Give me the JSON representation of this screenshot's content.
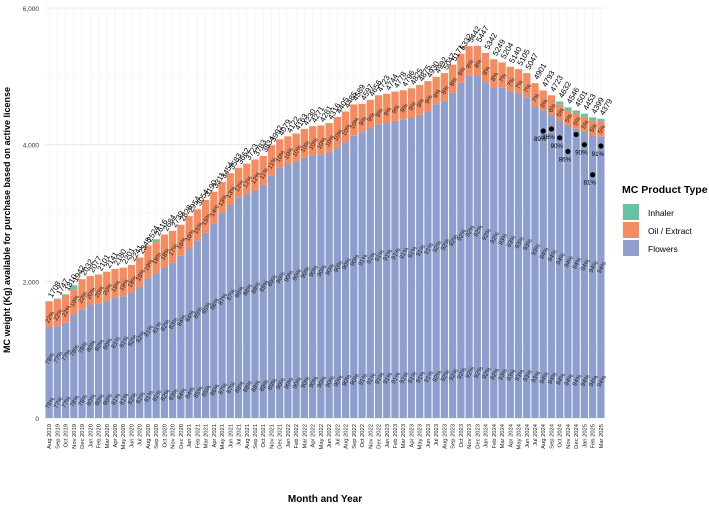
{
  "chart_data": {
    "type": "bar",
    "stacked": true,
    "title": "",
    "xlabel": "Month and Year",
    "ylabel": "MC weight (Kg) available for purchase based on active license",
    "ylim": [
      0,
      6000
    ],
    "yticks": [
      0,
      2000,
      4000,
      6000
    ],
    "ytick_labels": [
      "0",
      "2,000",
      "4,000",
      "6,000"
    ],
    "categories": [
      "Aug 2019",
      "Sep 2019",
      "Oct 2019",
      "Nov 2019",
      "Dec 2019",
      "Jan 2020",
      "Feb 2020",
      "Mar 2020",
      "Apr 2020",
      "May 2020",
      "Jun 2020",
      "Jul 2020",
      "Aug 2020",
      "Sep 2020",
      "Oct 2020",
      "Nov 2020",
      "Dec 2020",
      "Jan 2021",
      "Feb 2021",
      "Mar 2021",
      "Apr 2021",
      "May 2021",
      "Jun 2021",
      "Jul 2021",
      "Aug 2021",
      "Sep 2021",
      "Oct 2021",
      "Nov 2021",
      "Dec 2021",
      "Jan 2022",
      "Feb 2022",
      "Mar 2022",
      "Apr 2022",
      "May 2022",
      "Jun 2022",
      "Jul 2022",
      "Aug 2022",
      "Sep 2022",
      "Oct 2022",
      "Nov 2022",
      "Dec 2022",
      "Jan 2023",
      "Feb 2023",
      "Mar 2023",
      "Apr 2023",
      "May 2023",
      "Jun 2023",
      "Jul 2023",
      "Aug 2023",
      "Sep 2023",
      "Oct 2023",
      "Nov 2023",
      "Dec 2023",
      "Jan 2024",
      "Feb 2024",
      "Mar 2024",
      "Apr 2024",
      "May 2024",
      "Jun 2024",
      "Jul 2024",
      "Aug 2024",
      "Sep 2024",
      "Oct 2024",
      "Nov 2024",
      "Dec 2024",
      "Jan 2025",
      "Feb 2025",
      "Mar 2025"
    ],
    "totals": [
      1708,
      1747,
      1810,
      1942,
      2032,
      2077,
      2101,
      2141,
      2180,
      2201,
      2241,
      2348,
      2524,
      2616,
      2684,
      2739,
      2828,
      2954,
      3054,
      3190,
      3311,
      3454,
      3583,
      3662,
      3723,
      3783,
      3834,
      3992,
      4079,
      4122,
      4163,
      4230,
      4271,
      4281,
      4316,
      4405,
      4485,
      4589,
      4597,
      4656,
      4723,
      4744,
      4778,
      4796,
      4825,
      4875,
      4930,
      4992,
      5047,
      5171,
      5332,
      5442,
      5447,
      5342,
      5249,
      5204,
      5140,
      5105,
      5047,
      4901,
      4793,
      4723,
      4632,
      4546,
      4501,
      4453,
      4399,
      4379
    ],
    "flower_pct": [
      "78%",
      "77%",
      "77%",
      "78%",
      "78%",
      "80%",
      "80%",
      "80%",
      "81%",
      "81%",
      "82%",
      "82%",
      "81%",
      "81%",
      "82%",
      "83%",
      "84%",
      "84%",
      "85%",
      "85%",
      "86%",
      "87%",
      "87%",
      "88%",
      "88%",
      "88%",
      "89%",
      "89%",
      "90%",
      "90%",
      "90%",
      "90%",
      "90%",
      "90%",
      "90%",
      "90%",
      "90%",
      "90%",
      "91%",
      "91%",
      "91%",
      "91%",
      "91%",
      "91%",
      "91%",
      "91%",
      "91%",
      "92%",
      "92%",
      "92%",
      "92%",
      "92%",
      "92%",
      "92%",
      "92%",
      "93%",
      "93%",
      "93%",
      "93%",
      "93%",
      "94%",
      "94%",
      "94%",
      "94%",
      "94%",
      "94%",
      "94%",
      "94%"
    ],
    "oil_pct": [
      "22%",
      "22%",
      "22%",
      "19%",
      "22%",
      "20%",
      "20%",
      "20%",
      "19%",
      "19%",
      "18%",
      "18%",
      "19%",
      "18%",
      "18%",
      "17%",
      "16%",
      "16%",
      "15%",
      "15%",
      "14%",
      "13%",
      "13%",
      "12%",
      "12%",
      "12%",
      "11%",
      "11%",
      "10%",
      "10%",
      "10%",
      "10%",
      "10%",
      "10%",
      "10%",
      "10%",
      "10%",
      "10%",
      "9%",
      "9%",
      "9%",
      "9%",
      "9%",
      "9%",
      "9%",
      "9%",
      "9%",
      "8%",
      "8%",
      "8%",
      "8%",
      "8%",
      "8%",
      "8%",
      "8%",
      "7%",
      "7%",
      "7%",
      "7%",
      "7%",
      "6%",
      "6%",
      "5%",
      "5%",
      "5%",
      "5%",
      "5%",
      "5%"
    ],
    "series": [
      {
        "name": "Flowers",
        "color": "#8e9fce",
        "pct_values": [
          78,
          77,
          77,
          78,
          78,
          80,
          80,
          80,
          81,
          81,
          82,
          82,
          81,
          81,
          82,
          83,
          84,
          84,
          85,
          85,
          86,
          87,
          87,
          88,
          88,
          88,
          89,
          89,
          90,
          90,
          90,
          90,
          90,
          90,
          90,
          90,
          90,
          90,
          91,
          91,
          91,
          91,
          91,
          91,
          91,
          91,
          91,
          92,
          92,
          92,
          92,
          92,
          92,
          92,
          92,
          93,
          93,
          93,
          93,
          93,
          94,
          94,
          94,
          94,
          94,
          94,
          94,
          94
        ]
      },
      {
        "name": "Oil / Extract",
        "color": "#f58b5e",
        "pct_values": [
          22,
          22,
          22,
          19,
          22,
          20,
          20,
          20,
          19,
          19,
          18,
          18,
          19,
          18,
          18,
          17,
          16,
          16,
          15,
          15,
          14,
          13,
          13,
          12,
          12,
          12,
          11,
          11,
          10,
          10,
          10,
          10,
          10,
          10,
          10,
          10,
          10,
          10,
          9,
          9,
          9,
          9,
          9,
          9,
          9,
          9,
          9,
          8,
          8,
          8,
          8,
          8,
          8,
          8,
          8,
          7,
          7,
          7,
          7,
          7,
          6,
          6,
          5,
          5,
          5,
          5,
          5,
          5
        ]
      },
      {
        "name": "Inhaler",
        "color": "#66c2a5",
        "pct_values": [
          0,
          1,
          1,
          3,
          0,
          0,
          0,
          0,
          0,
          0,
          0,
          0,
          0,
          1,
          0,
          0,
          0,
          0,
          0,
          0,
          0,
          0,
          0,
          0,
          0,
          0,
          0,
          0,
          0,
          0,
          0,
          0,
          0,
          0,
          0,
          0,
          0,
          0,
          0,
          0,
          0,
          0,
          0,
          0,
          0,
          0,
          0,
          0,
          0,
          0,
          0,
          0,
          0,
          0,
          0,
          0,
          0,
          0,
          0,
          0,
          0,
          0,
          1,
          1,
          1,
          1,
          1,
          1
        ]
      }
    ],
    "points": [
      {
        "x": "Aug 2024",
        "y": 4200,
        "label": "89%"
      },
      {
        "x": "Sep 2024",
        "y": 4230,
        "label": "86%"
      },
      {
        "x": "Oct 2024",
        "y": 4100,
        "label": "90%"
      },
      {
        "x": "Nov 2024",
        "y": 3900,
        "label": "86%"
      },
      {
        "x": "Dec 2024",
        "y": 4150,
        "label": ""
      },
      {
        "x": "Jan 2025",
        "y": 4000,
        "label": "90%"
      },
      {
        "x": "Feb 2025",
        "y": 3560,
        "label": "81%"
      },
      {
        "x": "Mar 2025",
        "y": 3980,
        "label": "91%"
      }
    ],
    "legend": {
      "title": "MC Product Type",
      "position": "right",
      "items": [
        {
          "label": "Inhaler",
          "color": "#66c2a5"
        },
        {
          "label": "Oil / Extract",
          "color": "#f58b5e"
        },
        {
          "label": "Flowers",
          "color": "#8e9fce"
        }
      ]
    }
  }
}
